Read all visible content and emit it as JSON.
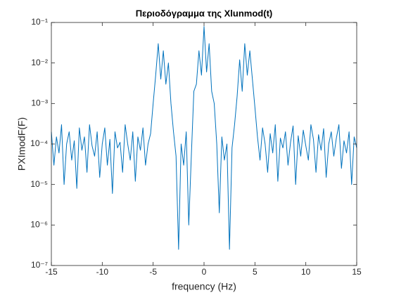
{
  "chart_data": {
    "type": "line",
    "title": "Περιοδόγραμμα της Xlunmod(t)",
    "xlabel": "frequency (Hz)",
    "ylabel": "PXImodF(F)",
    "log_y": true,
    "color": "#0072bd",
    "xlim": [
      -15,
      15
    ],
    "xticks": [
      -15,
      -10,
      -5,
      0,
      5,
      10,
      15
    ],
    "ylim": [
      1e-07,
      0.1
    ],
    "yticks": [
      {
        "value": 1e-07,
        "label": "10⁻⁷"
      },
      {
        "value": 1e-06,
        "label": "10⁻⁶"
      },
      {
        "value": 1e-05,
        "label": "10⁻⁵"
      },
      {
        "value": 0.0001,
        "label": "10⁻⁴"
      },
      {
        "value": 0.001,
        "label": "10⁻³"
      },
      {
        "value": 0.01,
        "label": "10⁻²"
      },
      {
        "value": 0.1,
        "label": "10⁻¹"
      }
    ],
    "x": [
      -15,
      -14.75,
      -14.5,
      -14.25,
      -14,
      -13.75,
      -13.5,
      -13.25,
      -13,
      -12.75,
      -12.5,
      -12.25,
      -12,
      -11.75,
      -11.5,
      -11.25,
      -11,
      -10.75,
      -10.5,
      -10.25,
      -10,
      -9.75,
      -9.5,
      -9.25,
      -9,
      -8.75,
      -8.5,
      -8.25,
      -8,
      -7.75,
      -7.5,
      -7.25,
      -7,
      -6.75,
      -6.5,
      -6.25,
      -6,
      -5.75,
      -5.5,
      -5.25,
      -5,
      -4.75,
      -4.5,
      -4.25,
      -4,
      -3.75,
      -3.5,
      -3.25,
      -3,
      -2.75,
      -2.5,
      -2.25,
      -2,
      -1.75,
      -1.5,
      -1.25,
      -1,
      -0.75,
      -0.5,
      -0.25,
      0,
      0.25,
      0.5,
      0.75,
      1,
      1.25,
      1.5,
      1.75,
      2,
      2.25,
      2.5,
      2.75,
      3,
      3.25,
      3.5,
      3.75,
      4,
      4.25,
      4.5,
      4.75,
      5,
      5.25,
      5.5,
      5.75,
      6,
      6.25,
      6.5,
      6.75,
      7,
      7.25,
      7.5,
      7.75,
      8,
      8.25,
      8.5,
      8.75,
      9,
      9.25,
      9.5,
      9.75,
      10,
      10.25,
      10.5,
      10.75,
      11,
      11.25,
      11.5,
      11.75,
      12,
      12.25,
      12.5,
      12.75,
      13,
      13.25,
      13.5,
      13.75,
      14,
      14.25,
      14.5,
      14.75,
      15
    ],
    "values": [
      0.0002,
      3e-05,
      0.00015,
      6e-05,
      0.0003,
      1e-05,
      0.0001,
      0.0002,
      4e-05,
      0.00012,
      8e-06,
      0.00025,
      7e-05,
      0.00015,
      2e-05,
      0.0003,
      9e-05,
      5e-05,
      0.0002,
      1.5e-05,
      0.0001,
      0.00025,
      3e-05,
      0.00013,
      6e-06,
      0.0002,
      8e-05,
      0.00011,
      2e-05,
      0.0003,
      0.0001,
      4e-05,
      0.0002,
      1.2e-05,
      0.00015,
      7e-05,
      0.00025,
      3e-05,
      0.0001,
      0.00018,
      0.001,
      0.005,
      0.03,
      0.004,
      0.02,
      0.003,
      0.01,
      0.001,
      0.0002,
      5e-05,
      2.5e-07,
      0.0001,
      3e-05,
      0.0002,
      1e-06,
      5e-05,
      0.002,
      0.003,
      0.02,
      0.005,
      0.08,
      0.006,
      0.03,
      0.002,
      0.001,
      0.0001,
      2e-06,
      0.00015,
      4e-05,
      0.0001,
      2.5e-07,
      8e-05,
      0.0003,
      0.0015,
      0.012,
      0.002,
      0.03,
      0.005,
      0.02,
      0.004,
      0.0008,
      0.00015,
      4e-05,
      0.00025,
      0.0001,
      2e-05,
      0.00018,
      6e-05,
      0.0003,
      1.2e-05,
      0.00014,
      8e-05,
      0.0002,
      3e-05,
      0.00011,
      0.00028,
      1e-05,
      0.00016,
      5e-05,
      0.00022,
      9e-05,
      4e-05,
      0.0003,
      0.00013,
      2e-05,
      0.00017,
      7e-05,
      0.00024,
      1.5e-05,
      0.0001,
      0.0002,
      5e-05,
      0.00014,
      0.0003,
      2.5e-05,
      0.00012,
      6e-05,
      0.0002,
      1e-05,
      0.00015,
      8e-05
    ]
  }
}
